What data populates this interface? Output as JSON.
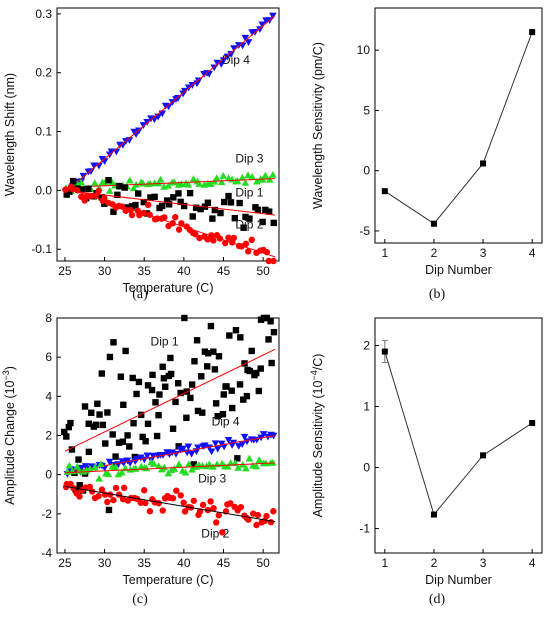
{
  "chart_data": [
    {
      "panel": "(a)",
      "type": "scatter",
      "xlabel": "Temperature (C)",
      "ylabel": "Wavelength Shift (nm)",
      "xlim": [
        24,
        52
      ],
      "ylim": [
        -0.12,
        0.31
      ],
      "xticks": [
        25,
        30,
        35,
        40,
        45,
        50
      ],
      "yticks": [
        -0.1,
        0.0,
        0.1,
        0.2,
        0.3
      ],
      "tick_labels_x": [
        "25",
        "30",
        "35",
        "40",
        "45",
        "50"
      ],
      "tick_labels_y": [
        "-0.1",
        "0.0",
        "0.1",
        "0.2",
        "0.3"
      ],
      "series": [
        {
          "name": "Dip 4",
          "marker": "triangle-down",
          "color": "#1010ff",
          "fit": {
            "x": [
              25,
              51.5
            ],
            "y": [
              -0.003,
              0.297
            ],
            "color": "#ff0000"
          },
          "noise": 0.003,
          "x_start": 25.2,
          "x_end": 51.3,
          "count": 60
        },
        {
          "name": "Dip 3",
          "marker": "triangle-up",
          "color": "#22dd22",
          "fit": {
            "x": [
              25,
              51.5
            ],
            "y": [
              0.005,
              0.02
            ],
            "color": "#ff0000"
          },
          "noise": 0.004,
          "x_start": 25.2,
          "x_end": 51.3,
          "count": 60
        },
        {
          "name": "Dip 1",
          "marker": "square",
          "color": "#000000",
          "fit": {
            "x": [
              25,
              51.5
            ],
            "y": [
              0.0,
              -0.042
            ],
            "color": "#ff0000"
          },
          "noise": 0.012,
          "x_start": 25.2,
          "x_end": 51.3,
          "count": 55
        },
        {
          "name": "Dip 2",
          "marker": "circle",
          "color": "#ff0000",
          "fit": {
            "x": [
              25,
              51.5
            ],
            "y": [
              0.005,
              -0.113
            ],
            "color": "#ff0000"
          },
          "noise": 0.006,
          "x_start": 25.2,
          "x_end": 51.3,
          "count": 60
        }
      ],
      "annotations": [
        {
          "text": "Dip 4",
          "x": 44.8,
          "y": 0.215
        },
        {
          "text": "Dip 3",
          "x": 46.5,
          "y": 0.047
        },
        {
          "text": "Dip 1",
          "x": 46.5,
          "y": -0.01
        },
        {
          "text": "Dip 2",
          "x": 46.5,
          "y": -0.065
        }
      ]
    },
    {
      "panel": "(b)",
      "type": "line",
      "xlabel": "Dip Number",
      "ylabel": "Wavelength Sensitivity (pm/C)",
      "x": [
        1,
        2,
        3,
        4
      ],
      "y": [
        -1.7,
        -4.4,
        0.6,
        11.5
      ],
      "xlim": [
        0.8,
        4.2
      ],
      "ylim": [
        -6,
        13.5
      ],
      "xticks": [
        1,
        2,
        3,
        4
      ],
      "yticks": [
        -5,
        0,
        5,
        10
      ],
      "tick_labels_x": [
        "1",
        "2",
        "3",
        "4"
      ],
      "tick_labels_y": [
        "-5",
        "0",
        "5",
        "10"
      ]
    },
    {
      "panel": "(c)",
      "type": "scatter",
      "xlabel": "Temperature (C)",
      "ylabel": "Amplitude Change (10",
      "ylabel_exp": "−3",
      "ylabel_close": ")",
      "xlim": [
        24,
        52
      ],
      "ylim": [
        -4,
        8
      ],
      "xticks": [
        25,
        30,
        35,
        40,
        45,
        50
      ],
      "yticks": [
        -4,
        -2,
        0,
        2,
        4,
        6,
        8
      ],
      "tick_labels_x": [
        "25",
        "30",
        "35",
        "40",
        "45",
        "50"
      ],
      "tick_labels_y": [
        "-4",
        "-2",
        "0",
        "2",
        "4",
        "6",
        "8"
      ],
      "series": [
        {
          "name": "Dip 1",
          "marker": "square",
          "color": "#000000",
          "fit": {
            "x": [
              25,
              51.5
            ],
            "y": [
              1.2,
              6.4
            ],
            "color": "#ff0000"
          },
          "noise": 1.6,
          "x_start": 25.0,
          "x_end": 51.3,
          "count": 110
        },
        {
          "name": "Dip 4",
          "marker": "triangle-down",
          "color": "#1010ff",
          "fit": {
            "x": [
              25,
              51.5
            ],
            "y": [
              0.1,
              2.0
            ],
            "color": "#ff0000"
          },
          "noise": 0.1,
          "x_start": 25.2,
          "x_end": 51.3,
          "count": 65
        },
        {
          "name": "Dip 3",
          "marker": "triangle-up",
          "color": "#22dd22",
          "fit": {
            "x": [
              25,
              51.5
            ],
            "y": [
              0.1,
              0.6
            ],
            "color": "#ff0000"
          },
          "noise": 0.15,
          "x_start": 25.2,
          "x_end": 51.3,
          "count": 60
        },
        {
          "name": "Dip 2",
          "marker": "circle",
          "color": "#ff0000",
          "fit": {
            "x": [
              25,
              51.5
            ],
            "y": [
              -0.6,
              -2.4
            ],
            "color": "#000000"
          },
          "noise": 0.35,
          "x_start": 25.0,
          "x_end": 51.3,
          "count": 70
        }
      ],
      "annotations": [
        {
          "text": "Dip 1",
          "x": 35.8,
          "y": 6.6
        },
        {
          "text": "Dip 4",
          "x": 43.5,
          "y": 2.5
        },
        {
          "text": "Dip 3",
          "x": 41.8,
          "y": -0.4
        },
        {
          "text": "Dip 2",
          "x": 42.2,
          "y": -3.2
        }
      ]
    },
    {
      "panel": "(d)",
      "type": "line",
      "xlabel": "Dip Number",
      "ylabel": "Amplitude Sensitivity (10",
      "ylabel_exp": "−4",
      "ylabel_close": "/C)",
      "x": [
        1,
        2,
        3,
        4
      ],
      "y": [
        1.9,
        -0.77,
        0.2,
        0.73
      ],
      "yerr": [
        0.18,
        0.04,
        0.0,
        0.0
      ],
      "xlim": [
        0.8,
        4.2
      ],
      "ylim": [
        -1.4,
        2.45
      ],
      "xticks": [
        1,
        2,
        3,
        4
      ],
      "yticks": [
        -1,
        0,
        1,
        2
      ],
      "tick_labels_x": [
        "1",
        "2",
        "3",
        "4"
      ],
      "tick_labels_y": [
        "-1",
        "0",
        "1",
        "2"
      ]
    }
  ]
}
